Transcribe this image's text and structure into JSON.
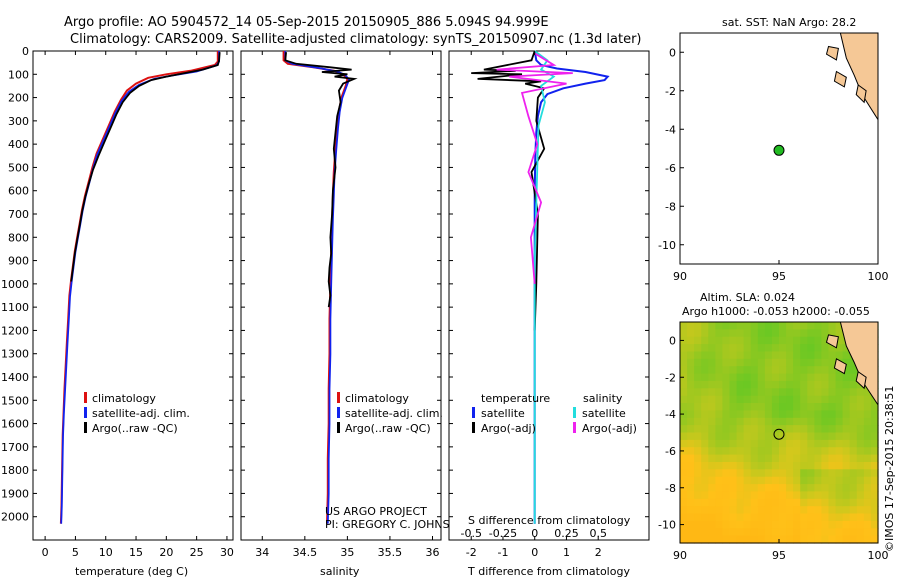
{
  "header": {
    "line1": "Argo profile: AO 5904572_14 05-Sep-2015 20150905_886 5.094S 94.999E",
    "line2": "Climatology: CARS2009. Satellite-adjusted climatology: synTS_20150907.nc (1.3d later)"
  },
  "colors": {
    "climatology": "#dd1111",
    "satellite": "#1122ee",
    "argo": "#000000",
    "sal_satellite": "#22dddd",
    "sal_argo": "#ee22ee",
    "land": "#f5c896",
    "float_marker": "#22bb22"
  },
  "credits": {
    "project": "US ARGO PROJECT",
    "pi": "PI: GREGORY C. JOHNSON",
    "imos": "©IMOS 17-Sep-2015 20:38:51"
  },
  "chart_data": [
    {
      "id": "temperature",
      "type": "line",
      "xlabel": "temperature (deg C)",
      "ylabel": "",
      "xlim": [
        -2,
        31
      ],
      "ylim": [
        2100,
        0
      ],
      "xticks": [
        0,
        5,
        10,
        15,
        20,
        25,
        30
      ],
      "xtick_labels": [
        "0",
        "5",
        "10",
        "15",
        "20",
        "25",
        "30"
      ],
      "yticks": [
        0,
        100,
        200,
        300,
        400,
        500,
        600,
        700,
        800,
        900,
        1000,
        1100,
        1200,
        1300,
        1400,
        1500,
        1600,
        1700,
        1800,
        1900,
        2000
      ],
      "ytick_labels": [
        "0",
        "100",
        "200",
        "300",
        "400",
        "500",
        "600",
        "700",
        "800",
        "900",
        "1000",
        "1100",
        "1200",
        "1300",
        "1400",
        "1500",
        "1600",
        "1700",
        "1800",
        "1900",
        "2000"
      ],
      "legend": [
        "climatology",
        "satellite-adj. clim.",
        "Argo(..raw -QC)"
      ],
      "series": [
        {
          "name": "climatology",
          "x": [
            28.5,
            28.5,
            28.0,
            24,
            20,
            17,
            15,
            13.5,
            12.5,
            11.5,
            10.5,
            9.5,
            8.5,
            7.8,
            7.2,
            6.6,
            6.1,
            5.7,
            5.3,
            4.9,
            4.6,
            4.3,
            4.0,
            3.8,
            3.6,
            3.4,
            3.2,
            3.05,
            2.9,
            2.8,
            2.7,
            2.6
          ],
          "y": [
            0,
            45,
            60,
            85,
            100,
            115,
            140,
            170,
            210,
            260,
            320,
            380,
            440,
            500,
            560,
            620,
            680,
            740,
            800,
            860,
            920,
            980,
            1050,
            1150,
            1250,
            1350,
            1450,
            1550,
            1650,
            1800,
            1950,
            2030
          ]
        },
        {
          "name": "satellite-adj. clim.",
          "x": [
            28.7,
            28.7,
            28.3,
            25,
            21,
            18,
            15.5,
            13.8,
            12.6,
            11.6,
            10.6,
            9.6,
            8.6,
            7.9,
            7.3,
            6.7,
            6.2,
            5.8,
            5.4,
            5.0,
            4.7,
            4.4,
            4.1,
            3.9,
            3.7,
            3.5,
            3.3,
            3.1,
            2.95,
            2.85,
            2.75,
            2.65
          ],
          "y": [
            0,
            45,
            62,
            88,
            105,
            120,
            145,
            175,
            215,
            265,
            325,
            385,
            445,
            505,
            565,
            625,
            685,
            745,
            805,
            865,
            925,
            985,
            1055,
            1155,
            1255,
            1355,
            1455,
            1555,
            1655,
            1805,
            1955,
            2030
          ]
        },
        {
          "name": "Argo(..raw -QC)",
          "x": [
            28.8,
            28.7,
            28.5,
            26,
            23,
            20,
            17.5,
            15.5,
            14,
            12.8,
            11.8,
            10.8,
            9.8,
            8.8,
            7.9,
            7.2,
            6.6,
            6.1,
            5.7,
            5.3,
            4.9,
            4.6,
            4.3
          ],
          "y": [
            5,
            40,
            60,
            80,
            95,
            110,
            125,
            150,
            180,
            220,
            270,
            330,
            390,
            450,
            510,
            570,
            630,
            690,
            750,
            810,
            870,
            930,
            990
          ]
        }
      ]
    },
    {
      "id": "salinity",
      "type": "line",
      "xlabel": "salinity",
      "xlim": [
        33.75,
        36.1
      ],
      "ylim": [
        2100,
        0
      ],
      "xticks": [
        34,
        34.5,
        35,
        35.5,
        36
      ],
      "xtick_labels": [
        "34",
        "34.5",
        "35",
        "35.5",
        "36"
      ],
      "yticks": [
        0,
        100,
        200,
        300,
        400,
        500,
        600,
        700,
        800,
        900,
        1000,
        1100,
        1200,
        1300,
        1400,
        1500,
        1600,
        1700,
        1800,
        1900,
        2000
      ],
      "legend": [
        "climatology",
        "satellite-adj. clim.",
        "Argo(..raw -QC)"
      ],
      "series": [
        {
          "name": "climatology",
          "x": [
            34.25,
            34.25,
            34.3,
            34.6,
            34.85,
            34.95,
            35.0,
            34.98,
            34.93,
            34.9,
            34.88,
            34.86,
            34.84,
            34.83,
            34.82,
            34.81,
            34.8,
            34.79,
            34.79,
            34.78,
            34.78,
            34.77,
            34.77,
            34.76
          ],
          "y": [
            0,
            40,
            55,
            70,
            85,
            100,
            120,
            150,
            200,
            260,
            330,
            420,
            520,
            620,
            720,
            850,
            1000,
            1150,
            1300,
            1450,
            1600,
            1750,
            1900,
            2030
          ]
        },
        {
          "name": "satellite-adj. clim.",
          "x": [
            34.27,
            34.27,
            34.35,
            34.65,
            34.88,
            34.97,
            35.02,
            34.99,
            34.94,
            34.91,
            34.89,
            34.87,
            34.85,
            34.84,
            34.83,
            34.82,
            34.81,
            34.8,
            34.8,
            34.79,
            34.79,
            34.78,
            34.78,
            34.77
          ],
          "y": [
            0,
            40,
            55,
            72,
            88,
            102,
            122,
            152,
            202,
            262,
            332,
            422,
            522,
            622,
            722,
            852,
            1002,
            1152,
            1302,
            1452,
            1602,
            1752,
            1902,
            2030
          ]
        },
        {
          "name": "Argo(..raw -QC)",
          "x": [
            34.28,
            34.27,
            34.4,
            34.8,
            35.05,
            34.7,
            35.0,
            34.85,
            35.08,
            34.95,
            34.9,
            34.92,
            34.88,
            34.86,
            34.84,
            34.86,
            34.83,
            34.82,
            34.8,
            34.81,
            34.79,
            34.78,
            34.8,
            34.78
          ],
          "y": [
            5,
            40,
            55,
            70,
            80,
            90,
            100,
            110,
            120,
            140,
            170,
            220,
            280,
            350,
            420,
            500,
            600,
            700,
            800,
            870,
            930,
            990,
            1050,
            1100
          ]
        }
      ]
    },
    {
      "id": "difference",
      "type": "line",
      "xlabel": "T difference from climatology",
      "xlabel_top": "S difference from climatology",
      "xlim": [
        -2.7,
        3.6
      ],
      "ylim": [
        2100,
        0
      ],
      "xticks": [
        -2,
        -1,
        0,
        1,
        2
      ],
      "xtick_labels": [
        "-2",
        "-1",
        "0",
        "1",
        "2"
      ],
      "xticks_top": [
        -0.5,
        -0.25,
        0,
        0.25,
        0.5
      ],
      "xtick_labels_top": [
        "-0.5",
        "-0.25",
        "0",
        "0.25",
        "0.5"
      ],
      "yticks": [
        0,
        100,
        200,
        300,
        400,
        500,
        600,
        700,
        800,
        900,
        1000,
        1100,
        1200,
        1300,
        1400,
        1500,
        1600,
        1700,
        1800,
        1900,
        2000
      ],
      "legend_temperature_title": "temperature",
      "legend_salinity_title": "salinity",
      "legend": [
        "satellite",
        "Argo(-adj)",
        "satellite",
        "Argo(-adj)"
      ],
      "series": [
        {
          "name": "T satellite",
          "x": [
            0,
            0.05,
            0.2,
            0.7,
            1.6,
            2.3,
            2.2,
            1.6,
            0.9,
            0.4,
            0.2,
            0.1,
            0.05,
            0.02,
            0,
            0,
            0,
            0,
            0
          ],
          "y": [
            0,
            40,
            60,
            75,
            90,
            110,
            125,
            140,
            160,
            185,
            220,
            280,
            350,
            450,
            600,
            900,
            1300,
            1700,
            2030
          ]
        },
        {
          "name": "T Argo(-adj)",
          "x": [
            0,
            -0.1,
            -1.6,
            -0.6,
            -2.0,
            -0.4,
            -1.8,
            0.2,
            -0.3,
            0.3,
            0.1,
            0.05,
            0.3,
            -0.1,
            0.1,
            0.05,
            0
          ],
          "y": [
            0,
            40,
            80,
            85,
            95,
            100,
            120,
            130,
            140,
            160,
            200,
            300,
            420,
            520,
            700,
            1000,
            1200
          ]
        },
        {
          "name": "S satellite",
          "x": [
            0,
            0.1,
            0.05,
            0.15,
            0.05,
            0.08,
            0.03,
            0.02,
            0,
            0,
            0
          ],
          "y": [
            0,
            40,
            80,
            110,
            150,
            220,
            320,
            500,
            900,
            1500,
            2030
          ]
        },
        {
          "name": "S Argo(-adj)",
          "x": [
            0,
            0.15,
            -0.3,
            0.3,
            -0.2,
            0.25,
            -0.1,
            -0.05,
            0.02,
            -0.05,
            0.05,
            -0.03,
            0
          ],
          "y": [
            10,
            60,
            80,
            95,
            110,
            140,
            180,
            280,
            400,
            520,
            650,
            800,
            1000
          ]
        }
      ]
    },
    {
      "id": "sst_map",
      "type": "scatter",
      "title": "sat. SST: NaN Argo: 28.2",
      "xlim": [
        90,
        100
      ],
      "ylim": [
        -11,
        1
      ],
      "xticks": [
        90,
        95,
        100
      ],
      "xtick_labels": [
        "90",
        "95",
        "100"
      ],
      "yticks": [
        0,
        -2,
        -4,
        -6,
        -8,
        -10
      ],
      "ytick_labels": [
        "0",
        "-2",
        "-4",
        "-6",
        "-8",
        "-10"
      ],
      "points": [
        {
          "lon": 95.0,
          "lat": -5.094
        }
      ]
    },
    {
      "id": "sla_map",
      "type": "heatmap",
      "title_line1": "Altim. SLA: 0.024",
      "title_line2": "Argo h1000: -0.053 h2000: -0.055",
      "xlim": [
        90,
        100
      ],
      "ylim": [
        -11,
        1
      ],
      "xticks": [
        90,
        95,
        100
      ],
      "xtick_labels": [
        "90",
        "95",
        "100"
      ],
      "yticks": [
        0,
        -2,
        -4,
        -6,
        -8,
        -10
      ],
      "ytick_labels": [
        "0",
        "-2",
        "-4",
        "-6",
        "-8",
        "-10"
      ],
      "points": [
        {
          "lon": 95.0,
          "lat": -5.094
        }
      ]
    }
  ]
}
